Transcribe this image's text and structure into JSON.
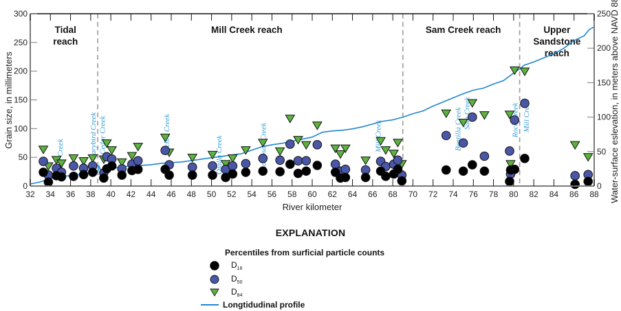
{
  "chart_data": {
    "type": "scatter",
    "title": "",
    "xlabel": "River kilometer",
    "ylabel": "Grain size, in millimeters",
    "y2label": "Water-surface eslevation, in meters above NAVD 88",
    "xlim": [
      32,
      88
    ],
    "ylim": [
      0,
      300
    ],
    "y2lim": [
      0,
      250
    ],
    "x_ticks": [
      32,
      34,
      36,
      38,
      40,
      42,
      44,
      46,
      48,
      50,
      52,
      54,
      56,
      58,
      60,
      62,
      64,
      66,
      68,
      70,
      72,
      74,
      76,
      78,
      80,
      82,
      84,
      86,
      88
    ],
    "y_ticks": [
      0,
      50,
      100,
      150,
      200,
      250,
      300
    ],
    "y2_ticks": [
      0,
      50,
      100,
      150,
      200,
      250
    ],
    "grid": false,
    "reaches": [
      {
        "name": "Tidal reach",
        "lines": [
          "Tidal",
          "reach"
        ],
        "label_km": 35.5,
        "start_km": 32,
        "end_km": 38.7
      },
      {
        "name": "Mill Creek reach",
        "lines": [
          "Mill Creek reach"
        ],
        "label_km": 53.5,
        "start_km": 38.7,
        "end_km": 69.0
      },
      {
        "name": "Sam Creek reach",
        "lines": [
          "Sam Creek reach"
        ],
        "label_km": 75.0,
        "start_km": 69.0,
        "end_km": 80.6
      },
      {
        "name": "Upper Sandstone reach",
        "lines": [
          "Upper",
          "Sandstone",
          "reach"
        ],
        "label_km": 84.3,
        "start_km": 80.6,
        "end_km": 88
      }
    ],
    "reach_boundaries_km": [
      38.7,
      69.0,
      80.6
    ],
    "tributaries": [
      {
        "name": "Roy Creek",
        "km": 35.2,
        "y_mm": 82
      },
      {
        "name": "Jarybird Creek",
        "km": 38.5,
        "y_mm": 128
      },
      {
        "name": "Cedar Creek",
        "km": 39.4,
        "y_mm": 122
      },
      {
        "name": "Euchre Creek",
        "km": 45.8,
        "y_mm": 125
      },
      {
        "name": "Ojalla Creek",
        "km": 51.0,
        "y_mm": 88
      },
      {
        "name": "Thompson Creek",
        "km": 55.4,
        "y_mm": 110
      },
      {
        "name": "Mill Creek",
        "km": 66.8,
        "y_mm": 115
      },
      {
        "name": "Bentilla Creek",
        "km": 74.7,
        "y_mm": 137
      },
      {
        "name": "Sam Creek",
        "km": 75.6,
        "y_mm": 155
      },
      {
        "name": "Rock Creek",
        "km": 80.4,
        "y_mm": 145
      },
      {
        "name": "Mill Creek",
        "km": 81.5,
        "y_mm": 150
      }
    ],
    "series": [
      {
        "name": "D16",
        "marker": "circle",
        "color": "#000000",
        "points": [
          [
            33.3,
            24
          ],
          [
            33.8,
            7
          ],
          [
            34.6,
            18
          ],
          [
            35.1,
            16
          ],
          [
            36.3,
            17
          ],
          [
            37.3,
            20
          ],
          [
            38.2,
            24
          ],
          [
            39.3,
            14
          ],
          [
            39.6,
            30
          ],
          [
            40.1,
            35
          ],
          [
            41.1,
            19
          ],
          [
            42.1,
            27
          ],
          [
            42.7,
            29
          ],
          [
            45.4,
            29
          ],
          [
            45.8,
            19
          ],
          [
            48.1,
            19
          ],
          [
            50.1,
            19
          ],
          [
            51.4,
            15
          ],
          [
            52.1,
            21
          ],
          [
            53.4,
            24
          ],
          [
            55.1,
            26
          ],
          [
            56.8,
            25
          ],
          [
            57.8,
            38
          ],
          [
            58.6,
            22
          ],
          [
            59.4,
            26
          ],
          [
            60.5,
            36
          ],
          [
            62.3,
            24
          ],
          [
            62.8,
            14
          ],
          [
            63.3,
            15
          ],
          [
            65.3,
            15
          ],
          [
            66.8,
            26
          ],
          [
            67.3,
            17
          ],
          [
            68.1,
            21
          ],
          [
            68.5,
            29
          ],
          [
            68.9,
            9
          ],
          [
            73.3,
            28
          ],
          [
            75.0,
            26
          ],
          [
            75.9,
            37
          ],
          [
            77.1,
            26
          ],
          [
            79.6,
            8
          ],
          [
            79.7,
            28
          ],
          [
            80.1,
            29
          ],
          [
            81.1,
            48
          ],
          [
            86.1,
            3
          ],
          [
            87.4,
            8
          ]
        ]
      },
      {
        "name": "D50",
        "marker": "circle",
        "color": "#4a56a6",
        "points": [
          [
            33.3,
            43
          ],
          [
            33.8,
            19
          ],
          [
            34.6,
            31
          ],
          [
            35.1,
            24
          ],
          [
            36.3,
            35
          ],
          [
            37.3,
            31
          ],
          [
            38.2,
            35
          ],
          [
            39.3,
            23
          ],
          [
            39.6,
            51
          ],
          [
            40.1,
            47
          ],
          [
            41.1,
            30
          ],
          [
            42.1,
            38
          ],
          [
            42.7,
            44
          ],
          [
            45.4,
            62
          ],
          [
            45.8,
            37
          ],
          [
            48.1,
            33
          ],
          [
            50.1,
            35
          ],
          [
            51.4,
            29
          ],
          [
            52.1,
            35
          ],
          [
            53.4,
            39
          ],
          [
            55.1,
            48
          ],
          [
            56.8,
            45
          ],
          [
            57.8,
            73
          ],
          [
            58.6,
            44
          ],
          [
            59.4,
            44
          ],
          [
            60.5,
            72
          ],
          [
            62.3,
            38
          ],
          [
            62.8,
            26
          ],
          [
            63.3,
            29
          ],
          [
            65.3,
            28
          ],
          [
            66.8,
            43
          ],
          [
            67.3,
            34
          ],
          [
            68.1,
            38
          ],
          [
            68.5,
            45
          ],
          [
            68.9,
            19
          ],
          [
            73.3,
            88
          ],
          [
            75.0,
            75
          ],
          [
            75.9,
            120
          ],
          [
            77.1,
            52
          ],
          [
            79.6,
            61
          ],
          [
            79.7,
            21
          ],
          [
            80.1,
            115
          ],
          [
            81.1,
            144
          ],
          [
            86.1,
            18
          ],
          [
            87.4,
            20
          ]
        ]
      },
      {
        "name": "D84",
        "marker": "triangle-down",
        "color": "#5db33f",
        "points": [
          [
            33.3,
            63
          ],
          [
            33.8,
            34
          ],
          [
            34.6,
            45
          ],
          [
            35.1,
            39
          ],
          [
            36.3,
            48
          ],
          [
            37.3,
            43
          ],
          [
            38.2,
            48
          ],
          [
            39.3,
            46
          ],
          [
            39.6,
            74
          ],
          [
            40.1,
            62
          ],
          [
            41.1,
            41
          ],
          [
            42.1,
            52
          ],
          [
            42.7,
            68
          ],
          [
            45.4,
            84
          ],
          [
            45.8,
            58
          ],
          [
            48.1,
            49
          ],
          [
            50.1,
            54
          ],
          [
            51.4,
            38
          ],
          [
            52.1,
            48
          ],
          [
            53.4,
            62
          ],
          [
            55.1,
            75
          ],
          [
            56.8,
            60
          ],
          [
            57.8,
            117
          ],
          [
            58.6,
            80
          ],
          [
            59.4,
            71
          ],
          [
            60.5,
            105
          ],
          [
            62.3,
            65
          ],
          [
            62.8,
            55
          ],
          [
            63.3,
            65
          ],
          [
            65.3,
            44
          ],
          [
            66.8,
            78
          ],
          [
            67.3,
            62
          ],
          [
            68.1,
            56
          ],
          [
            68.5,
            75
          ],
          [
            68.9,
            38
          ],
          [
            73.3,
            126
          ],
          [
            75.0,
            110
          ],
          [
            75.9,
            144
          ],
          [
            77.1,
            123
          ],
          [
            79.6,
            124
          ],
          [
            79.7,
            38
          ],
          [
            80.1,
            201
          ],
          [
            81.1,
            199
          ],
          [
            86.1,
            71
          ],
          [
            87.4,
            50
          ]
        ]
      },
      {
        "name": "Longtidudinal profile",
        "type": "line",
        "axis": "y2",
        "color": "#1f86cf",
        "unit": "m above NAVD 88",
        "points": [
          [
            32,
            3
          ],
          [
            33,
            6
          ],
          [
            34,
            11
          ],
          [
            35,
            14
          ],
          [
            36,
            15
          ],
          [
            37,
            17
          ],
          [
            38,
            19
          ],
          [
            38.7,
            20
          ],
          [
            38.8,
            30
          ],
          [
            39.0,
            22
          ],
          [
            40,
            26
          ],
          [
            41,
            27
          ],
          [
            42,
            30
          ],
          [
            43,
            30
          ],
          [
            44,
            31
          ],
          [
            45,
            33
          ],
          [
            46,
            34
          ],
          [
            47,
            35
          ],
          [
            48,
            37
          ],
          [
            49,
            39
          ],
          [
            50,
            41
          ],
          [
            51,
            43
          ],
          [
            52,
            45
          ],
          [
            53,
            47
          ],
          [
            54,
            52
          ],
          [
            55,
            57
          ],
          [
            56,
            60
          ],
          [
            57,
            62
          ],
          [
            58,
            65
          ],
          [
            59,
            68
          ],
          [
            60,
            71
          ],
          [
            61,
            78
          ],
          [
            62,
            80
          ],
          [
            63,
            81
          ],
          [
            64,
            83
          ],
          [
            65,
            86
          ],
          [
            66,
            90
          ],
          [
            67,
            94
          ],
          [
            68,
            96
          ],
          [
            69,
            100
          ],
          [
            70,
            105
          ],
          [
            71,
            109
          ],
          [
            72,
            116
          ],
          [
            73,
            122
          ],
          [
            74,
            128
          ],
          [
            75,
            134
          ],
          [
            76,
            139
          ],
          [
            77,
            142
          ],
          [
            78,
            148
          ],
          [
            79,
            153
          ],
          [
            80,
            164
          ],
          [
            80.8,
            172
          ],
          [
            81,
            175
          ],
          [
            82,
            180
          ],
          [
            83,
            186
          ],
          [
            84,
            192
          ],
          [
            85,
            200
          ],
          [
            86,
            211
          ],
          [
            87,
            218
          ],
          [
            87.5,
            227
          ],
          [
            88,
            231
          ]
        ]
      }
    ]
  },
  "legend": {
    "title": "EXPLANATION",
    "subtitle": "Percentiles from surficial particle counts",
    "items": [
      {
        "label": "D",
        "sub": "16",
        "symbol": "black-circle"
      },
      {
        "label": "D",
        "sub": "50",
        "symbol": "blue-circle"
      },
      {
        "label": "D",
        "sub": "84",
        "symbol": "green-triangle"
      }
    ],
    "line_label": "Longtidudinal profile"
  },
  "colors": {
    "d16": "#000000",
    "d50": "#4a56a6",
    "d84": "#5db33f",
    "profile": "#1f86cf",
    "tributary_text": "#2a9ad6",
    "axis": "#7a7a7a",
    "boundary": "#9a9a9a"
  }
}
